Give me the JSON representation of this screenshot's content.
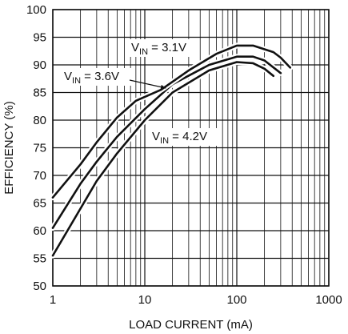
{
  "chart_data": {
    "type": "line",
    "x_scale": "log",
    "xlim": [
      1,
      1000
    ],
    "ylim": [
      50,
      100
    ],
    "xlabel": "LOAD CURRENT (mA)",
    "ylabel": "EFFICIENCY (%)",
    "x_ticks": [
      "1",
      "10",
      "100",
      "1000"
    ],
    "y_ticks": [
      "50",
      "55",
      "60",
      "65",
      "70",
      "75",
      "80",
      "85",
      "90",
      "95",
      "100"
    ],
    "grid": true,
    "series": [
      {
        "name": "VIN = 4.2V",
        "label_main": "V",
        "label_sub": "IN",
        "label_rest": " = 4.2V",
        "points": [
          [
            1,
            55.5
          ],
          [
            2,
            64
          ],
          [
            3,
            69
          ],
          [
            5,
            74
          ],
          [
            10,
            80
          ],
          [
            20,
            85
          ],
          [
            50,
            89
          ],
          [
            100,
            90.5
          ],
          [
            150,
            90.3
          ],
          [
            200,
            89.3
          ],
          [
            250,
            88
          ]
        ]
      },
      {
        "name": "VIN = 3.6V",
        "label_main": "V",
        "label_sub": "IN",
        "label_rest": " = 3.6V",
        "points": [
          [
            1,
            60.5
          ],
          [
            2,
            68.5
          ],
          [
            3,
            72.5
          ],
          [
            5,
            77
          ],
          [
            10,
            82
          ],
          [
            20,
            86.5
          ],
          [
            50,
            90
          ],
          [
            100,
            91.5
          ],
          [
            150,
            91.5
          ],
          [
            200,
            90.8
          ],
          [
            300,
            88.5
          ]
        ]
      },
      {
        "name": "VIN = 3.1V",
        "label_main": "V",
        "label_sub": "IN",
        "label_rest": " = 3.1V",
        "points": [
          [
            1,
            66
          ],
          [
            2,
            72
          ],
          [
            3,
            76
          ],
          [
            5,
            80.5
          ],
          [
            8,
            83.5
          ],
          [
            15,
            85.5
          ],
          [
            30,
            89
          ],
          [
            60,
            92
          ],
          [
            100,
            93.5
          ],
          [
            150,
            93.5
          ],
          [
            250,
            92.3
          ],
          [
            300,
            91.3
          ],
          [
            380,
            89.5
          ]
        ]
      }
    ]
  }
}
